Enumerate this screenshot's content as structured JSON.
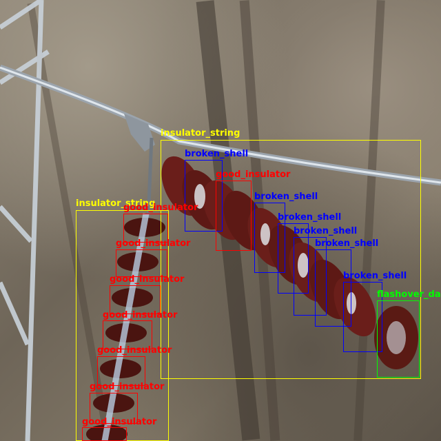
{
  "image": {
    "description_colors": {
      "insulator_string": "#ffff00",
      "broken_shell": "#0000ff",
      "good_insulator": "#ff0000",
      "flashover_damage": "#00ff00"
    }
  },
  "detections": [
    {
      "label": "insulator_string",
      "color": "#ffff00"
    },
    {
      "label": "insulator_string",
      "color": "#ffff00"
    },
    {
      "label": "broken_shell",
      "color": "#0000ff"
    },
    {
      "label": "good_insulator",
      "color": "#ff0000"
    },
    {
      "label": "broken_shell",
      "color": "#0000ff"
    },
    {
      "label": "broken_shell",
      "color": "#0000ff"
    },
    {
      "label": "broken_shell",
      "color": "#0000ff"
    },
    {
      "label": "broken_shell",
      "color": "#0000ff"
    },
    {
      "label": "broken_shell",
      "color": "#0000ff"
    },
    {
      "label": "flashover_da",
      "color": "#00ff00"
    },
    {
      "label": "good_insulator",
      "color": "#ff0000"
    },
    {
      "label": "good_insulator",
      "color": "#ff0000"
    },
    {
      "label": "good_insulator",
      "color": "#ff0000"
    },
    {
      "label": "good_insulator",
      "color": "#ff0000"
    },
    {
      "label": "good_insulator",
      "color": "#ff0000"
    },
    {
      "label": "good_insulator",
      "color": "#ff0000"
    },
    {
      "label": "good_insulator",
      "color": "#ff0000"
    }
  ]
}
